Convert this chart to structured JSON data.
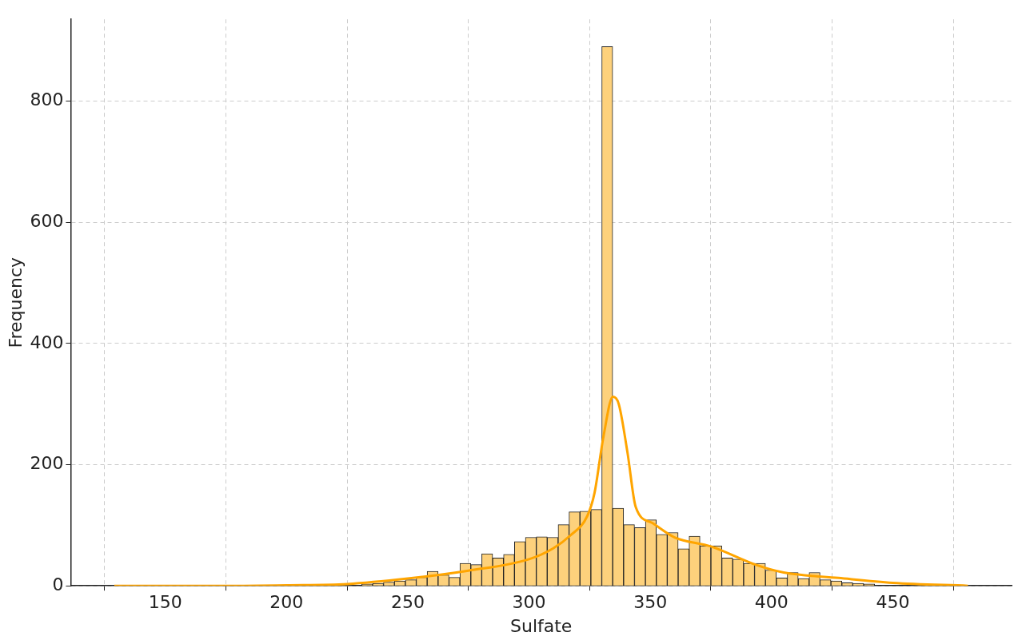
{
  "chart_data": {
    "type": "histogram",
    "xlabel": "Sulfate",
    "ylabel": "Frequency",
    "bins": [
      127.5,
      132,
      136.5,
      141,
      145.5,
      150,
      154.5,
      159,
      163.5,
      168,
      172.5,
      177,
      181.5,
      186,
      190.5,
      195,
      199.5,
      204,
      208.5,
      213,
      217.5,
      222,
      226.5,
      231,
      235.5,
      240,
      244.5,
      249,
      253.5,
      258,
      262.5,
      267,
      271.5,
      276,
      280.5,
      285,
      289.5,
      294,
      298.5,
      303,
      307.5,
      312,
      316.5,
      321,
      325.5,
      330,
      334.5,
      339,
      343.5,
      348,
      352.5,
      357,
      361.5,
      366,
      370.5,
      375,
      379.5,
      384,
      388.5,
      393,
      397.5,
      402,
      406.5,
      411,
      415.5,
      420,
      424.5,
      429,
      433.5,
      438,
      442.5,
      447,
      451.5,
      456,
      460.5,
      465,
      469.5,
      474,
      478.5,
      483
    ],
    "values": [
      0,
      0,
      0,
      0,
      0,
      0,
      0,
      0,
      0,
      0,
      0,
      0,
      0,
      0,
      0,
      0,
      0,
      1,
      0,
      1,
      1,
      0,
      0,
      3,
      4,
      6,
      8,
      10,
      14,
      24,
      18,
      14,
      37,
      35,
      53,
      46,
      52,
      73,
      80,
      81,
      80,
      101,
      122,
      123,
      126,
      890,
      128,
      101,
      96,
      109,
      85,
      88,
      61,
      82,
      66,
      66,
      46,
      44,
      37,
      37,
      26,
      13,
      22,
      12,
      22,
      10,
      8,
      5,
      4,
      3,
      0,
      0,
      0,
      0,
      0,
      0,
      1,
      0,
      0
    ],
    "color": "#fdd17c",
    "series": [
      {
        "type": "line",
        "color": "#ffa500",
        "x": [
          129,
          175,
          200,
          225,
          250,
          275,
          300,
          310,
          317,
          324,
          327,
          330.6,
          334.6,
          337,
          340.6,
          344,
          350.7,
          360,
          375,
          394,
          405,
          427.6,
          450,
          481
        ],
        "values": [
          0,
          0,
          1,
          3,
          12,
          25,
          44,
          62,
          83,
          115,
          153,
          244,
          312,
          300,
          220,
          130,
          104,
          80,
          65,
          34,
          22,
          13,
          5,
          0
        ]
      }
    ],
    "marker": "none",
    "xlim": [
      111,
      499
    ],
    "ylim": [
      0,
      935
    ],
    "xticks": [
      150,
      200,
      250,
      300,
      350,
      400,
      450
    ],
    "yticks": [
      0,
      200,
      400,
      600,
      800
    ],
    "grid": true
  }
}
